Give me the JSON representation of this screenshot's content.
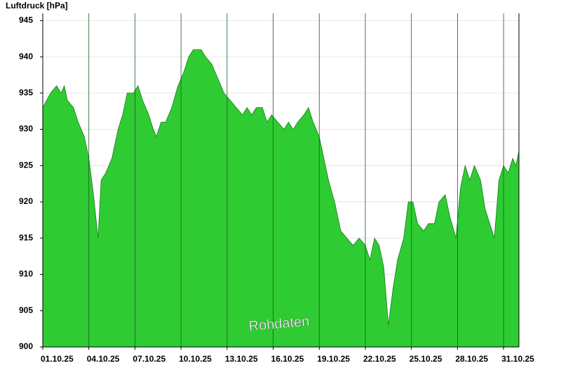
{
  "chart_data": {
    "type": "area",
    "y_label": "Luftdruck [hPa]",
    "annotation": "Rohdaten",
    "color": "#2ecc32",
    "x": [
      0,
      0.25,
      0.5,
      0.9,
      1.2,
      1.4,
      1.6,
      2.0,
      2.3,
      2.7,
      3.0,
      3.3,
      3.6,
      3.8,
      4.1,
      4.5,
      4.9,
      5.2,
      5.5,
      5.9,
      6.2,
      6.5,
      6.9,
      7.2,
      7.4,
      7.7,
      8.0,
      8.4,
      8.8,
      9.2,
      9.5,
      9.8,
      10.3,
      10.6,
      11.0,
      11.4,
      11.8,
      12.2,
      12.6,
      13.0,
      13.3,
      13.6,
      13.9,
      14.3,
      14.6,
      14.9,
      15.3,
      15.7,
      16.0,
      16.3,
      16.6,
      17.0,
      17.3,
      17.6,
      18.0,
      18.3,
      18.6,
      19.0,
      19.4,
      19.8,
      20.2,
      20.6,
      21.0,
      21.3,
      21.6,
      21.9,
      22.2,
      22.5,
      22.8,
      23.1,
      23.5,
      23.8,
      24.1,
      24.4,
      24.8,
      25.1,
      25.5,
      25.8,
      26.2,
      26.5,
      26.9,
      27.2,
      27.5,
      27.8,
      28.1,
      28.5,
      28.8,
      29.1,
      29.4,
      29.7,
      30.0,
      30.3,
      30.6,
      30.8,
      31.0
    ],
    "values": [
      933,
      934,
      935,
      936,
      935,
      936,
      934,
      933,
      931,
      929,
      926,
      921,
      915,
      923,
      924,
      926,
      930,
      932,
      935,
      935,
      936,
      934,
      932,
      930,
      929,
      931,
      931,
      933,
      936,
      938,
      940,
      941,
      941,
      940,
      939,
      937,
      935,
      934,
      933,
      932,
      933,
      932,
      933,
      933,
      931,
      932,
      931,
      930,
      931,
      930,
      931,
      932,
      933,
      931,
      929,
      926,
      923,
      920,
      916,
      915,
      914,
      915,
      914,
      912,
      915,
      914,
      911,
      903,
      908,
      912,
      915,
      920,
      920,
      917,
      916,
      917,
      917,
      920,
      921,
      918,
      915,
      922,
      925,
      923,
      925,
      923,
      919,
      917,
      915,
      923,
      925,
      924,
      926,
      925,
      927
    ],
    "xlim": [
      0,
      31
    ],
    "xticks": [
      {
        "value": 0,
        "label": "01.10.25"
      },
      {
        "value": 3,
        "label": "04.10.25"
      },
      {
        "value": 6,
        "label": "07.10.25"
      },
      {
        "value": 9,
        "label": "10.10.25"
      },
      {
        "value": 12,
        "label": "13.10.25"
      },
      {
        "value": 15,
        "label": "16.10.25"
      },
      {
        "value": 18,
        "label": "19.10.25"
      },
      {
        "value": 21,
        "label": "22.10.25"
      },
      {
        "value": 24,
        "label": "25.10.25"
      },
      {
        "value": 27,
        "label": "28.10.25"
      },
      {
        "value": 30,
        "label": "31.10.25"
      }
    ],
    "ylim": [
      900,
      946
    ],
    "yticks": [
      900,
      905,
      910,
      915,
      920,
      925,
      930,
      935,
      940,
      945
    ],
    "grid": true
  }
}
